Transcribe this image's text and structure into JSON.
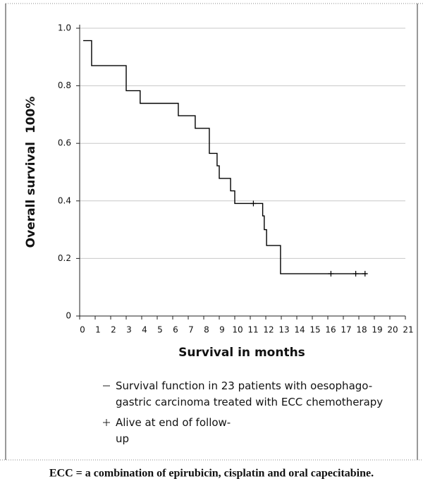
{
  "chart_data": {
    "type": "step",
    "y_label": "Overall survival  100%",
    "x_label": "Survival in months",
    "xlim": [
      0,
      21
    ],
    "xticks": [
      0,
      1,
      2,
      3,
      4,
      5,
      6,
      7,
      8,
      9,
      10,
      11,
      12,
      13,
      14,
      15,
      16,
      17,
      18,
      19,
      20,
      21
    ],
    "ylim": [
      0,
      1
    ],
    "yticks": [
      0,
      0.2,
      0.4,
      0.6,
      0.8,
      {
        "value": 1.0,
        "label": "1.0"
      }
    ],
    "grid": true,
    "series": [
      {
        "name": "Survival function in 23 patients with oesophago-gastric carcinoma treated with ECC chemotherapy",
        "color": "#000000",
        "marker": "step",
        "x": [
          0.23,
          0.77,
          3.0,
          3.9,
          6.36,
          7.45,
          8.36,
          8.86,
          9.0,
          9.73,
          10.0,
          11.8,
          11.9,
          12.05,
          12.95,
          18.5
        ],
        "values": [
          0.957,
          0.87,
          0.783,
          0.739,
          0.696,
          0.652,
          0.565,
          0.522,
          0.478,
          0.435,
          0.391,
          0.348,
          0.3,
          0.245,
          0.147,
          0.147
        ]
      },
      {
        "name": "Alive at end of follow-up",
        "color": "#000000",
        "marker": "plus",
        "x": [
          11.2,
          16.2,
          17.8,
          18.4
        ],
        "values": [
          0.391,
          0.147,
          0.147,
          0.147
        ]
      }
    ],
    "caption": "ECC = a combination of epirubicin, cisplatin and oral capecitabine."
  }
}
